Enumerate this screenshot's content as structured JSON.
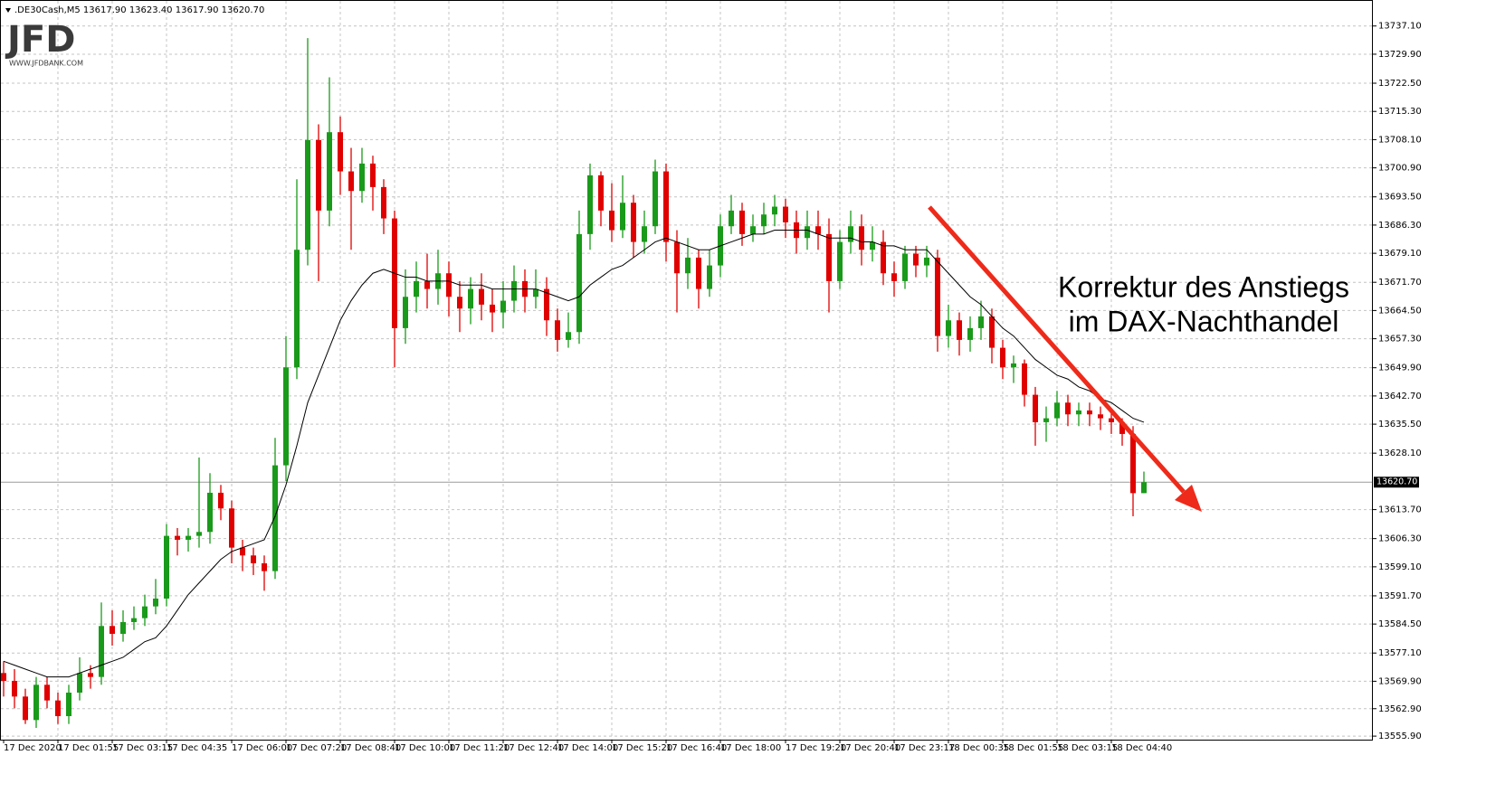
{
  "chart_data": {
    "type": "candlestick",
    "title": ".DE30Cash,M5  13617.90 13623.40 13617.90 13620.70",
    "logo": "JFD",
    "logo_url": "WWW.JFDBANK.COM",
    "annotation": [
      "Korrektur des Anstiegs",
      "im DAX-Nachthandel"
    ],
    "up_color": "#1a9a1a",
    "down_color": "#e00000",
    "ma_color": "#000000",
    "grid": true,
    "ylim": [
      13555.0,
      13743.5
    ],
    "yticks": [
      {
        "value": 13555.9,
        "label": "13555.90"
      },
      {
        "value": 13562.9,
        "label": "13562.90"
      },
      {
        "value": 13569.9,
        "label": "13569.90"
      },
      {
        "value": 13577.1,
        "label": "13577.10"
      },
      {
        "value": 13584.5,
        "label": "13584.50"
      },
      {
        "value": 13591.7,
        "label": "13591.70"
      },
      {
        "value": 13599.1,
        "label": "13599.10"
      },
      {
        "value": 13606.3,
        "label": "13606.30"
      },
      {
        "value": 13613.7,
        "label": "13613.70"
      },
      {
        "value": 13628.1,
        "label": "13628.10"
      },
      {
        "value": 13635.5,
        "label": "13635.50"
      },
      {
        "value": 13642.7,
        "label": "13642.70"
      },
      {
        "value": 13649.9,
        "label": "13649.90"
      },
      {
        "value": 13657.3,
        "label": "13657.30"
      },
      {
        "value": 13664.5,
        "label": "13664.50"
      },
      {
        "value": 13671.7,
        "label": "13671.70"
      },
      {
        "value": 13679.1,
        "label": "13679.10"
      },
      {
        "value": 13686.3,
        "label": "13686.30"
      },
      {
        "value": 13693.5,
        "label": "13693.50"
      },
      {
        "value": 13700.9,
        "label": "13700.90"
      },
      {
        "value": 13708.1,
        "label": "13708.10"
      },
      {
        "value": 13715.3,
        "label": "13715.30"
      },
      {
        "value": 13722.5,
        "label": "13722.50"
      },
      {
        "value": 13729.9,
        "label": "13729.90"
      },
      {
        "value": 13737.1,
        "label": "13737.10"
      }
    ],
    "last_price": {
      "value": 13620.7,
      "label": "13620.70"
    },
    "xticks": [
      {
        "value": 0,
        "label": "17 Dec 2020"
      },
      {
        "value": 5,
        "label": "17 Dec 01:55"
      },
      {
        "value": 10,
        "label": "17 Dec 03:15"
      },
      {
        "value": 15,
        "label": "17 Dec 04:35"
      },
      {
        "value": 21,
        "label": "17 Dec 06:00"
      },
      {
        "value": 26,
        "label": "17 Dec 07:20"
      },
      {
        "value": 31,
        "label": "17 Dec 08:40"
      },
      {
        "value": 36,
        "label": "17 Dec 10:00"
      },
      {
        "value": 41,
        "label": "17 Dec 11:20"
      },
      {
        "value": 46,
        "label": "17 Dec 12:40"
      },
      {
        "value": 51,
        "label": "17 Dec 14:00"
      },
      {
        "value": 56,
        "label": "17 Dec 15:20"
      },
      {
        "value": 61,
        "label": "17 Dec 16:40"
      },
      {
        "value": 66,
        "label": "17 Dec 18:00"
      },
      {
        "value": 72,
        "label": "17 Dec 19:20"
      },
      {
        "value": 77,
        "label": "17 Dec 20:40"
      },
      {
        "value": 82,
        "label": "17 Dec 23:17"
      },
      {
        "value": 87,
        "label": "18 Dec 00:35"
      },
      {
        "value": 92,
        "label": "18 Dec 01:55"
      },
      {
        "value": 97,
        "label": "18 Dec 03:15"
      },
      {
        "value": 102,
        "label": "18 Dec 04:40"
      }
    ],
    "open": [
      13572,
      13570,
      13566,
      13560,
      13569,
      13565,
      13561,
      13567,
      13572,
      13571,
      13584,
      13582,
      13585,
      13586,
      13589,
      13591,
      13607,
      13606,
      13607,
      13608,
      13618,
      13614,
      13604,
      13602,
      13600,
      13598,
      13625,
      13650,
      13680,
      13708,
      13690,
      13710,
      13700,
      13695,
      13702,
      13696,
      13688,
      13660,
      13668,
      13672,
      13670,
      13674,
      13668,
      13665,
      13670,
      13666,
      13664,
      13667,
      13672,
      13668,
      13670,
      13662,
      13657,
      13659,
      13684,
      13699,
      13690,
      13685,
      13692,
      13682,
      13686,
      13700,
      13682,
      13674,
      13678,
      13670,
      13676,
      13686,
      13690,
      13684,
      13686,
      13689,
      13691,
      13687,
      13683,
      13686,
      13684,
      13672,
      13682,
      13686,
      13680,
      13682,
      13674,
      13672,
      13679,
      13676,
      13678,
      13658,
      13662,
      13657,
      13660,
      13663,
      13655,
      13650,
      13651,
      13643,
      13636,
      13637,
      13641,
      13638,
      13639,
      13638,
      13637,
      13636,
      13633,
      13617.9
    ],
    "high": [
      13575,
      13573,
      13568,
      13571,
      13571,
      13567,
      13569,
      13576,
      13574,
      13590,
      13588,
      13588,
      13589,
      13592,
      13596,
      13610,
      13609,
      13609,
      13627,
      13623,
      13620,
      13616,
      13606,
      13604,
      13602,
      13632,
      13658,
      13698,
      13734,
      13712,
      13724,
      13714,
      13706,
      13706,
      13704,
      13698,
      13690,
      13675,
      13677,
      13679,
      13680,
      13677,
      13672,
      13673,
      13674,
      13670,
      13672,
      13676,
      13675,
      13675,
      13673,
      13665,
      13664,
      13690,
      13702,
      13700,
      13697,
      13699,
      13694,
      13690,
      13703,
      13702,
      13685,
      13683,
      13680,
      13680,
      13689,
      13694,
      13692,
      13689,
      13692,
      13694,
      13693,
      13690,
      13690,
      13690,
      13688,
      13685,
      13690,
      13689,
      13686,
      13685,
      13677,
      13681,
      13681,
      13681,
      13680,
      13666,
      13664,
      13663,
      13667,
      13665,
      13657,
      13653,
      13652,
      13645,
      13640,
      13644,
      13643,
      13641,
      13641,
      13640,
      13639,
      13637,
      13635,
      13623.4
    ],
    "low": [
      13566,
      13563,
      13559,
      13558,
      13563,
      13559,
      13559,
      13565,
      13568,
      13569,
      13579,
      13580,
      13583,
      13584,
      13587,
      13589,
      13602,
      13603,
      13604,
      13605,
      13611,
      13600,
      13598,
      13597,
      13593,
      13596,
      13621,
      13647,
      13676,
      13672,
      13686,
      13694,
      13680,
      13692,
      13690,
      13684,
      13650,
      13656,
      13664,
      13665,
      13666,
      13663,
      13659,
      13661,
      13662,
      13659,
      13660,
      13664,
      13664,
      13665,
      13658,
      13654,
      13655,
      13656,
      13680,
      13686,
      13682,
      13683,
      13678,
      13679,
      13684,
      13677,
      13664,
      13670,
      13665,
      13668,
      13673,
      13684,
      13681,
      13682,
      13684,
      13686,
      13683,
      13679,
      13680,
      13680,
      13664,
      13670,
      13679,
      13676,
      13677,
      13671,
      13668,
      13670,
      13673,
      13673,
      13654,
      13655,
      13653,
      13654,
      13657,
      13651,
      13647,
      13646,
      13640,
      13630,
      13631,
      13635,
      13635,
      13635,
      13635,
      13634,
      13633,
      13630,
      13612,
      13617.9
    ],
    "close": [
      13570,
      13566,
      13560,
      13569,
      13565,
      13561,
      13567,
      13572,
      13571,
      13584,
      13582,
      13585,
      13586,
      13589,
      13591,
      13607,
      13606,
      13607,
      13608,
      13618,
      13614,
      13604,
      13602,
      13600,
      13598,
      13625,
      13650,
      13680,
      13708,
      13690,
      13710,
      13700,
      13695,
      13702,
      13696,
      13688,
      13660,
      13668,
      13672,
      13670,
      13674,
      13668,
      13665,
      13670,
      13666,
      13664,
      13667,
      13672,
      13668,
      13670,
      13662,
      13657,
      13659,
      13684,
      13699,
      13690,
      13685,
      13692,
      13682,
      13686,
      13700,
      13682,
      13674,
      13678,
      13670,
      13676,
      13686,
      13690,
      13684,
      13686,
      13689,
      13691,
      13687,
      13683,
      13686,
      13684,
      13672,
      13682,
      13686,
      13680,
      13682,
      13674,
      13672,
      13679,
      13676,
      13678,
      13658,
      13662,
      13657,
      13660,
      13663,
      13655,
      13650,
      13651,
      13643,
      13636,
      13637,
      13641,
      13638,
      13639,
      13638,
      13637,
      13636,
      13633,
      13617.9,
      13620.7
    ],
    "ma": [
      13575,
      13574,
      13573,
      13572,
      13571,
      13571,
      13571,
      13572,
      13573,
      13574,
      13575,
      13576,
      13578,
      13580,
      13581,
      13584,
      13588,
      13592,
      13595,
      13598,
      13601,
      13603,
      13604,
      13605,
      13606,
      13612,
      13620,
      13630,
      13641,
      13648,
      13655,
      13662,
      13667,
      13671,
      13674,
      13675,
      13674,
      13673,
      13673,
      13672,
      13672,
      13672,
      13671,
      13671,
      13671,
      13670,
      13670,
      13670,
      13670,
      13670,
      13669,
      13668,
      13667,
      13668,
      13671,
      13673,
      13675,
      13676,
      13678,
      13680,
      13682,
      13683,
      13682,
      13681,
      13680,
      13680,
      13681,
      13682,
      13683,
      13684,
      13684,
      13685,
      13685,
      13685,
      13685,
      13684,
      13683,
      13683,
      13683,
      13682,
      13682,
      13681,
      13681,
      13680,
      13680,
      13680,
      13677,
      13674,
      13671,
      13668,
      13666,
      13663,
      13660,
      13658,
      13655,
      13652,
      13650,
      13648,
      13647,
      13645,
      13644,
      13642,
      13641,
      13639,
      13637,
      13636
    ]
  }
}
